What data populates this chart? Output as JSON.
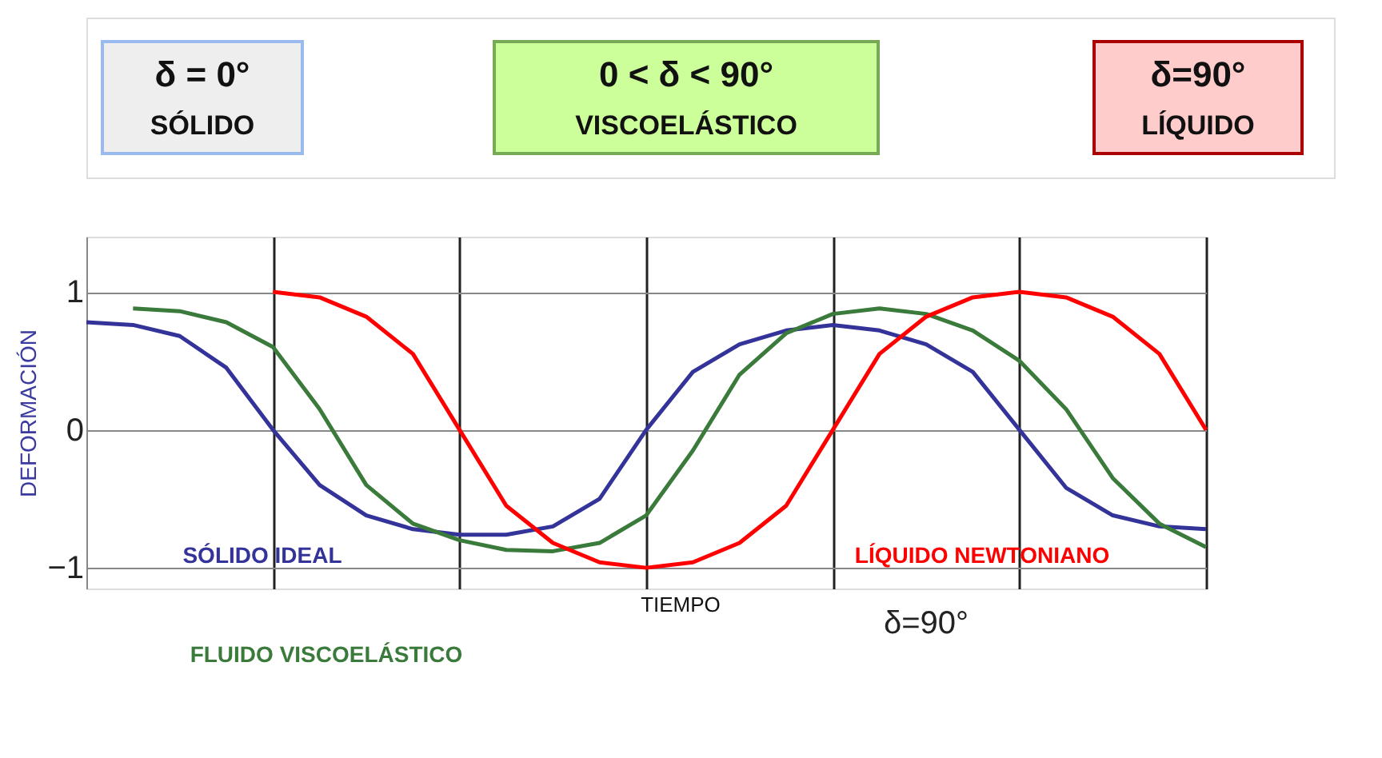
{
  "chart_data": {
    "type": "line",
    "annotations": [
      "δ = 0°",
      "SÓLIDO",
      "0 < δ < 90°",
      "VISCOELÁSTICO",
      "δ=90°",
      "LÍQUIDO",
      "δ=90°"
    ],
    "xlabel": "TIEMPO",
    "ylabel": "DEFORMACIÓN",
    "categories": [
      null,
      null,
      null,
      null,
      null,
      null,
      null,
      null,
      null,
      null,
      null,
      null,
      null,
      null,
      null,
      null,
      null,
      null,
      null,
      null,
      null,
      null,
      null,
      null,
      null
    ],
    "series": [
      {
        "name": "SÓLIDO IDEAL",
        "color": "#333399",
        "values": [
          0.78,
          0.76,
          0.68,
          0.45,
          0.0,
          -0.4,
          -0.62,
          -0.72,
          -0.76,
          -0.76,
          -0.7,
          -0.5,
          0.0,
          0.42,
          0.62,
          0.72,
          0.76,
          0.72,
          0.62,
          0.42,
          0.0,
          -0.42,
          -0.62,
          -0.7,
          -0.72
        ]
      },
      {
        "name": "FLUIDO VISCOELÁSTICO",
        "color": "#3a7a3a",
        "values": [
          null,
          0.88,
          0.86,
          0.78,
          0.6,
          0.15,
          -0.4,
          -0.68,
          -0.8,
          -0.87,
          -0.88,
          -0.82,
          -0.62,
          -0.15,
          0.4,
          0.7,
          0.84,
          0.88,
          0.84,
          0.72,
          0.5,
          0.15,
          -0.35,
          -0.68,
          -0.85
        ]
      },
      {
        "name": "LÍQUIDO NEWTONIANO",
        "color": "#ff0000",
        "values": [
          null,
          null,
          null,
          null,
          1.0,
          0.96,
          0.82,
          0.55,
          0.0,
          -0.55,
          -0.82,
          -0.96,
          -1.0,
          -0.96,
          -0.82,
          -0.55,
          0.0,
          0.55,
          0.82,
          0.96,
          1.0,
          0.96,
          0.82,
          0.55,
          0.0
        ]
      }
    ],
    "ylim": [
      -1.15,
      1.4
    ],
    "yticks": [
      -1,
      0,
      1
    ],
    "grid": true,
    "tick_labels": "y",
    "marker": "none",
    "line_style": "solid"
  }
}
